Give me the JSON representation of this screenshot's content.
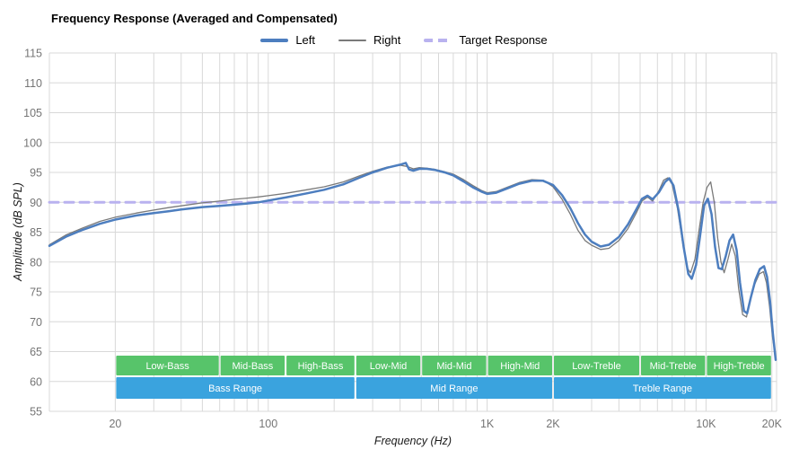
{
  "title": "Frequency Response (Averaged and Compensated)",
  "legend": [
    {
      "id": "left",
      "label": "Left",
      "color": "#4d7ebf",
      "style": "solid-thick"
    },
    {
      "id": "right",
      "label": "Right",
      "color": "#7a7a7a",
      "style": "solid-thin"
    },
    {
      "id": "target",
      "label": "Target Response",
      "color": "#b9b2ef",
      "style": "dashed"
    }
  ],
  "axes": {
    "x": {
      "label": "Frequency (Hz)",
      "scale": "log",
      "min": 10,
      "max": 21000,
      "gridlines": [
        20,
        30,
        40,
        50,
        60,
        70,
        80,
        90,
        100,
        200,
        300,
        400,
        500,
        600,
        700,
        800,
        900,
        1000,
        2000,
        3000,
        4000,
        5000,
        6000,
        7000,
        8000,
        9000,
        10000,
        20000
      ],
      "ticks": [
        {
          "value": 20,
          "label": "20"
        },
        {
          "value": 100,
          "label": "100"
        },
        {
          "value": 1000,
          "label": "1K"
        },
        {
          "value": 2000,
          "label": "2K"
        },
        {
          "value": 10000,
          "label": "10K"
        },
        {
          "value": 20000,
          "label": "20K"
        }
      ]
    },
    "y": {
      "label": "Amplitude (dB SPL)",
      "min": 55,
      "max": 115,
      "ticks": [
        55,
        60,
        65,
        70,
        75,
        80,
        85,
        90,
        95,
        100,
        105,
        110,
        115
      ]
    }
  },
  "colors": {
    "grid": "#d8d8d8",
    "tick_text": "#757575",
    "band_text": "#ffffff",
    "green_band": "#57c46a",
    "blue_band": "#3aa3de",
    "left_line": "#4d7ebf",
    "right_line": "#7a7a7a",
    "target_line": "#b9b2ef"
  },
  "chart_data": {
    "type": "line",
    "title": "Frequency Response (Averaged and Compensated)",
    "xlabel": "Frequency (Hz)",
    "ylabel": "Amplitude (dB SPL)",
    "x_scale": "log",
    "xlim": [
      10,
      21000
    ],
    "ylim": [
      55,
      115
    ],
    "grid": true,
    "legend_position": "top-center",
    "target_response_db": 90,
    "series": [
      {
        "name": "Left",
        "color": "#4d7ebf",
        "width": 2.5,
        "dash": "",
        "points": [
          [
            10,
            82.7
          ],
          [
            12,
            84.3
          ],
          [
            14,
            85.3
          ],
          [
            17,
            86.4
          ],
          [
            20,
            87.1
          ],
          [
            25,
            87.8
          ],
          [
            30,
            88.2
          ],
          [
            35,
            88.5
          ],
          [
            40,
            88.8
          ],
          [
            50,
            89.2
          ],
          [
            60,
            89.4
          ],
          [
            70,
            89.6
          ],
          [
            80,
            89.8
          ],
          [
            90,
            90.0
          ],
          [
            100,
            90.3
          ],
          [
            120,
            90.8
          ],
          [
            150,
            91.5
          ],
          [
            180,
            92.1
          ],
          [
            220,
            93.0
          ],
          [
            260,
            94.1
          ],
          [
            300,
            95.0
          ],
          [
            350,
            95.8
          ],
          [
            400,
            96.3
          ],
          [
            425,
            96.6
          ],
          [
            440,
            95.5
          ],
          [
            460,
            95.3
          ],
          [
            490,
            95.6
          ],
          [
            530,
            95.6
          ],
          [
            580,
            95.4
          ],
          [
            640,
            95.0
          ],
          [
            700,
            94.5
          ],
          [
            780,
            93.5
          ],
          [
            860,
            92.5
          ],
          [
            940,
            91.8
          ],
          [
            1000,
            91.4
          ],
          [
            1100,
            91.6
          ],
          [
            1250,
            92.4
          ],
          [
            1400,
            93.1
          ],
          [
            1600,
            93.6
          ],
          [
            1800,
            93.6
          ],
          [
            2000,
            92.9
          ],
          [
            2200,
            91.2
          ],
          [
            2400,
            89.0
          ],
          [
            2600,
            86.5
          ],
          [
            2800,
            84.6
          ],
          [
            3000,
            83.4
          ],
          [
            3300,
            82.6
          ],
          [
            3600,
            82.9
          ],
          [
            4000,
            84.2
          ],
          [
            4400,
            86.3
          ],
          [
            4800,
            88.8
          ],
          [
            5100,
            90.6
          ],
          [
            5400,
            91.1
          ],
          [
            5700,
            90.5
          ],
          [
            6100,
            91.7
          ],
          [
            6500,
            93.4
          ],
          [
            6800,
            94.0
          ],
          [
            7100,
            92.8
          ],
          [
            7500,
            88.5
          ],
          [
            7900,
            82.5
          ],
          [
            8300,
            78.0
          ],
          [
            8600,
            77.2
          ],
          [
            9000,
            79.5
          ],
          [
            9400,
            84.5
          ],
          [
            9800,
            89.5
          ],
          [
            10200,
            90.6
          ],
          [
            10600,
            88.0
          ],
          [
            11000,
            82.5
          ],
          [
            11400,
            79.0
          ],
          [
            11800,
            78.8
          ],
          [
            12300,
            81.0
          ],
          [
            12800,
            83.6
          ],
          [
            13300,
            84.6
          ],
          [
            13800,
            82.0
          ],
          [
            14300,
            76.5
          ],
          [
            14900,
            71.8
          ],
          [
            15400,
            71.4
          ],
          [
            16000,
            74.0
          ],
          [
            16800,
            77.0
          ],
          [
            17600,
            78.8
          ],
          [
            18400,
            79.3
          ],
          [
            19000,
            77.5
          ],
          [
            19600,
            73.5
          ],
          [
            20200,
            68.0
          ],
          [
            20800,
            63.6
          ]
        ]
      },
      {
        "name": "Right",
        "color": "#7a7a7a",
        "width": 1.3,
        "dash": "",
        "points": [
          [
            10,
            82.9
          ],
          [
            12,
            84.6
          ],
          [
            14,
            85.6
          ],
          [
            17,
            86.8
          ],
          [
            20,
            87.5
          ],
          [
            25,
            88.2
          ],
          [
            30,
            88.7
          ],
          [
            35,
            89.1
          ],
          [
            40,
            89.4
          ],
          [
            50,
            89.9
          ],
          [
            60,
            90.2
          ],
          [
            70,
            90.5
          ],
          [
            80,
            90.7
          ],
          [
            90,
            90.9
          ],
          [
            100,
            91.1
          ],
          [
            120,
            91.5
          ],
          [
            150,
            92.1
          ],
          [
            180,
            92.6
          ],
          [
            220,
            93.4
          ],
          [
            260,
            94.4
          ],
          [
            300,
            95.2
          ],
          [
            350,
            95.9
          ],
          [
            400,
            96.2
          ],
          [
            430,
            96.0
          ],
          [
            460,
            95.6
          ],
          [
            490,
            95.8
          ],
          [
            530,
            95.7
          ],
          [
            580,
            95.5
          ],
          [
            640,
            95.1
          ],
          [
            700,
            94.7
          ],
          [
            780,
            93.8
          ],
          [
            860,
            92.8
          ],
          [
            940,
            92.0
          ],
          [
            1000,
            91.6
          ],
          [
            1100,
            91.8
          ],
          [
            1250,
            92.6
          ],
          [
            1400,
            93.3
          ],
          [
            1600,
            93.8
          ],
          [
            1800,
            93.7
          ],
          [
            2000,
            92.6
          ],
          [
            2200,
            90.5
          ],
          [
            2400,
            88.0
          ],
          [
            2600,
            85.3
          ],
          [
            2800,
            83.6
          ],
          [
            3000,
            82.8
          ],
          [
            3300,
            82.1
          ],
          [
            3600,
            82.3
          ],
          [
            4000,
            83.6
          ],
          [
            4400,
            85.6
          ],
          [
            4800,
            88.2
          ],
          [
            5100,
            90.2
          ],
          [
            5400,
            90.9
          ],
          [
            5700,
            90.2
          ],
          [
            6100,
            92.0
          ],
          [
            6400,
            93.7
          ],
          [
            6700,
            94.1
          ],
          [
            7000,
            93.0
          ],
          [
            7400,
            89.0
          ],
          [
            7800,
            83.5
          ],
          [
            8200,
            79.0
          ],
          [
            8500,
            78.2
          ],
          [
            8900,
            80.5
          ],
          [
            9300,
            85.5
          ],
          [
            9700,
            90.0
          ],
          [
            10100,
            92.5
          ],
          [
            10500,
            93.4
          ],
          [
            10900,
            90.0
          ],
          [
            11300,
            84.0
          ],
          [
            11700,
            80.0
          ],
          [
            12100,
            78.2
          ],
          [
            12600,
            80.5
          ],
          [
            13100,
            83.0
          ],
          [
            13600,
            81.0
          ],
          [
            14100,
            75.5
          ],
          [
            14700,
            71.2
          ],
          [
            15300,
            70.8
          ],
          [
            15900,
            73.5
          ],
          [
            16700,
            76.3
          ],
          [
            17500,
            78.0
          ],
          [
            18300,
            78.4
          ],
          [
            18900,
            76.5
          ],
          [
            19500,
            72.5
          ],
          [
            20100,
            67.5
          ],
          [
            20700,
            64.5
          ]
        ]
      },
      {
        "name": "Target Response",
        "color": "#b9b2ef",
        "width": 3,
        "dash": "10 7",
        "points": [
          [
            10,
            90
          ],
          [
            21000,
            90
          ]
        ]
      }
    ]
  },
  "bands": {
    "sub_bands": [
      {
        "label": "Low-Bass",
        "f1": 20,
        "f2": 60
      },
      {
        "label": "Mid-Bass",
        "f1": 60,
        "f2": 120
      },
      {
        "label": "High-Bass",
        "f1": 120,
        "f2": 250
      },
      {
        "label": "Low-Mid",
        "f1": 250,
        "f2": 500
      },
      {
        "label": "Mid-Mid",
        "f1": 500,
        "f2": 1000
      },
      {
        "label": "High-Mid",
        "f1": 1000,
        "f2": 2000
      },
      {
        "label": "Low-Treble",
        "f1": 2000,
        "f2": 5000
      },
      {
        "label": "Mid-Treble",
        "f1": 5000,
        "f2": 10000
      },
      {
        "label": "High-Treble",
        "f1": 10000,
        "f2": 20000
      }
    ],
    "range_bands": [
      {
        "label": "Bass Range",
        "f1": 20,
        "f2": 250
      },
      {
        "label": "Mid Range",
        "f1": 250,
        "f2": 2000
      },
      {
        "label": "Treble Range",
        "f1": 2000,
        "f2": 20000
      }
    ]
  }
}
